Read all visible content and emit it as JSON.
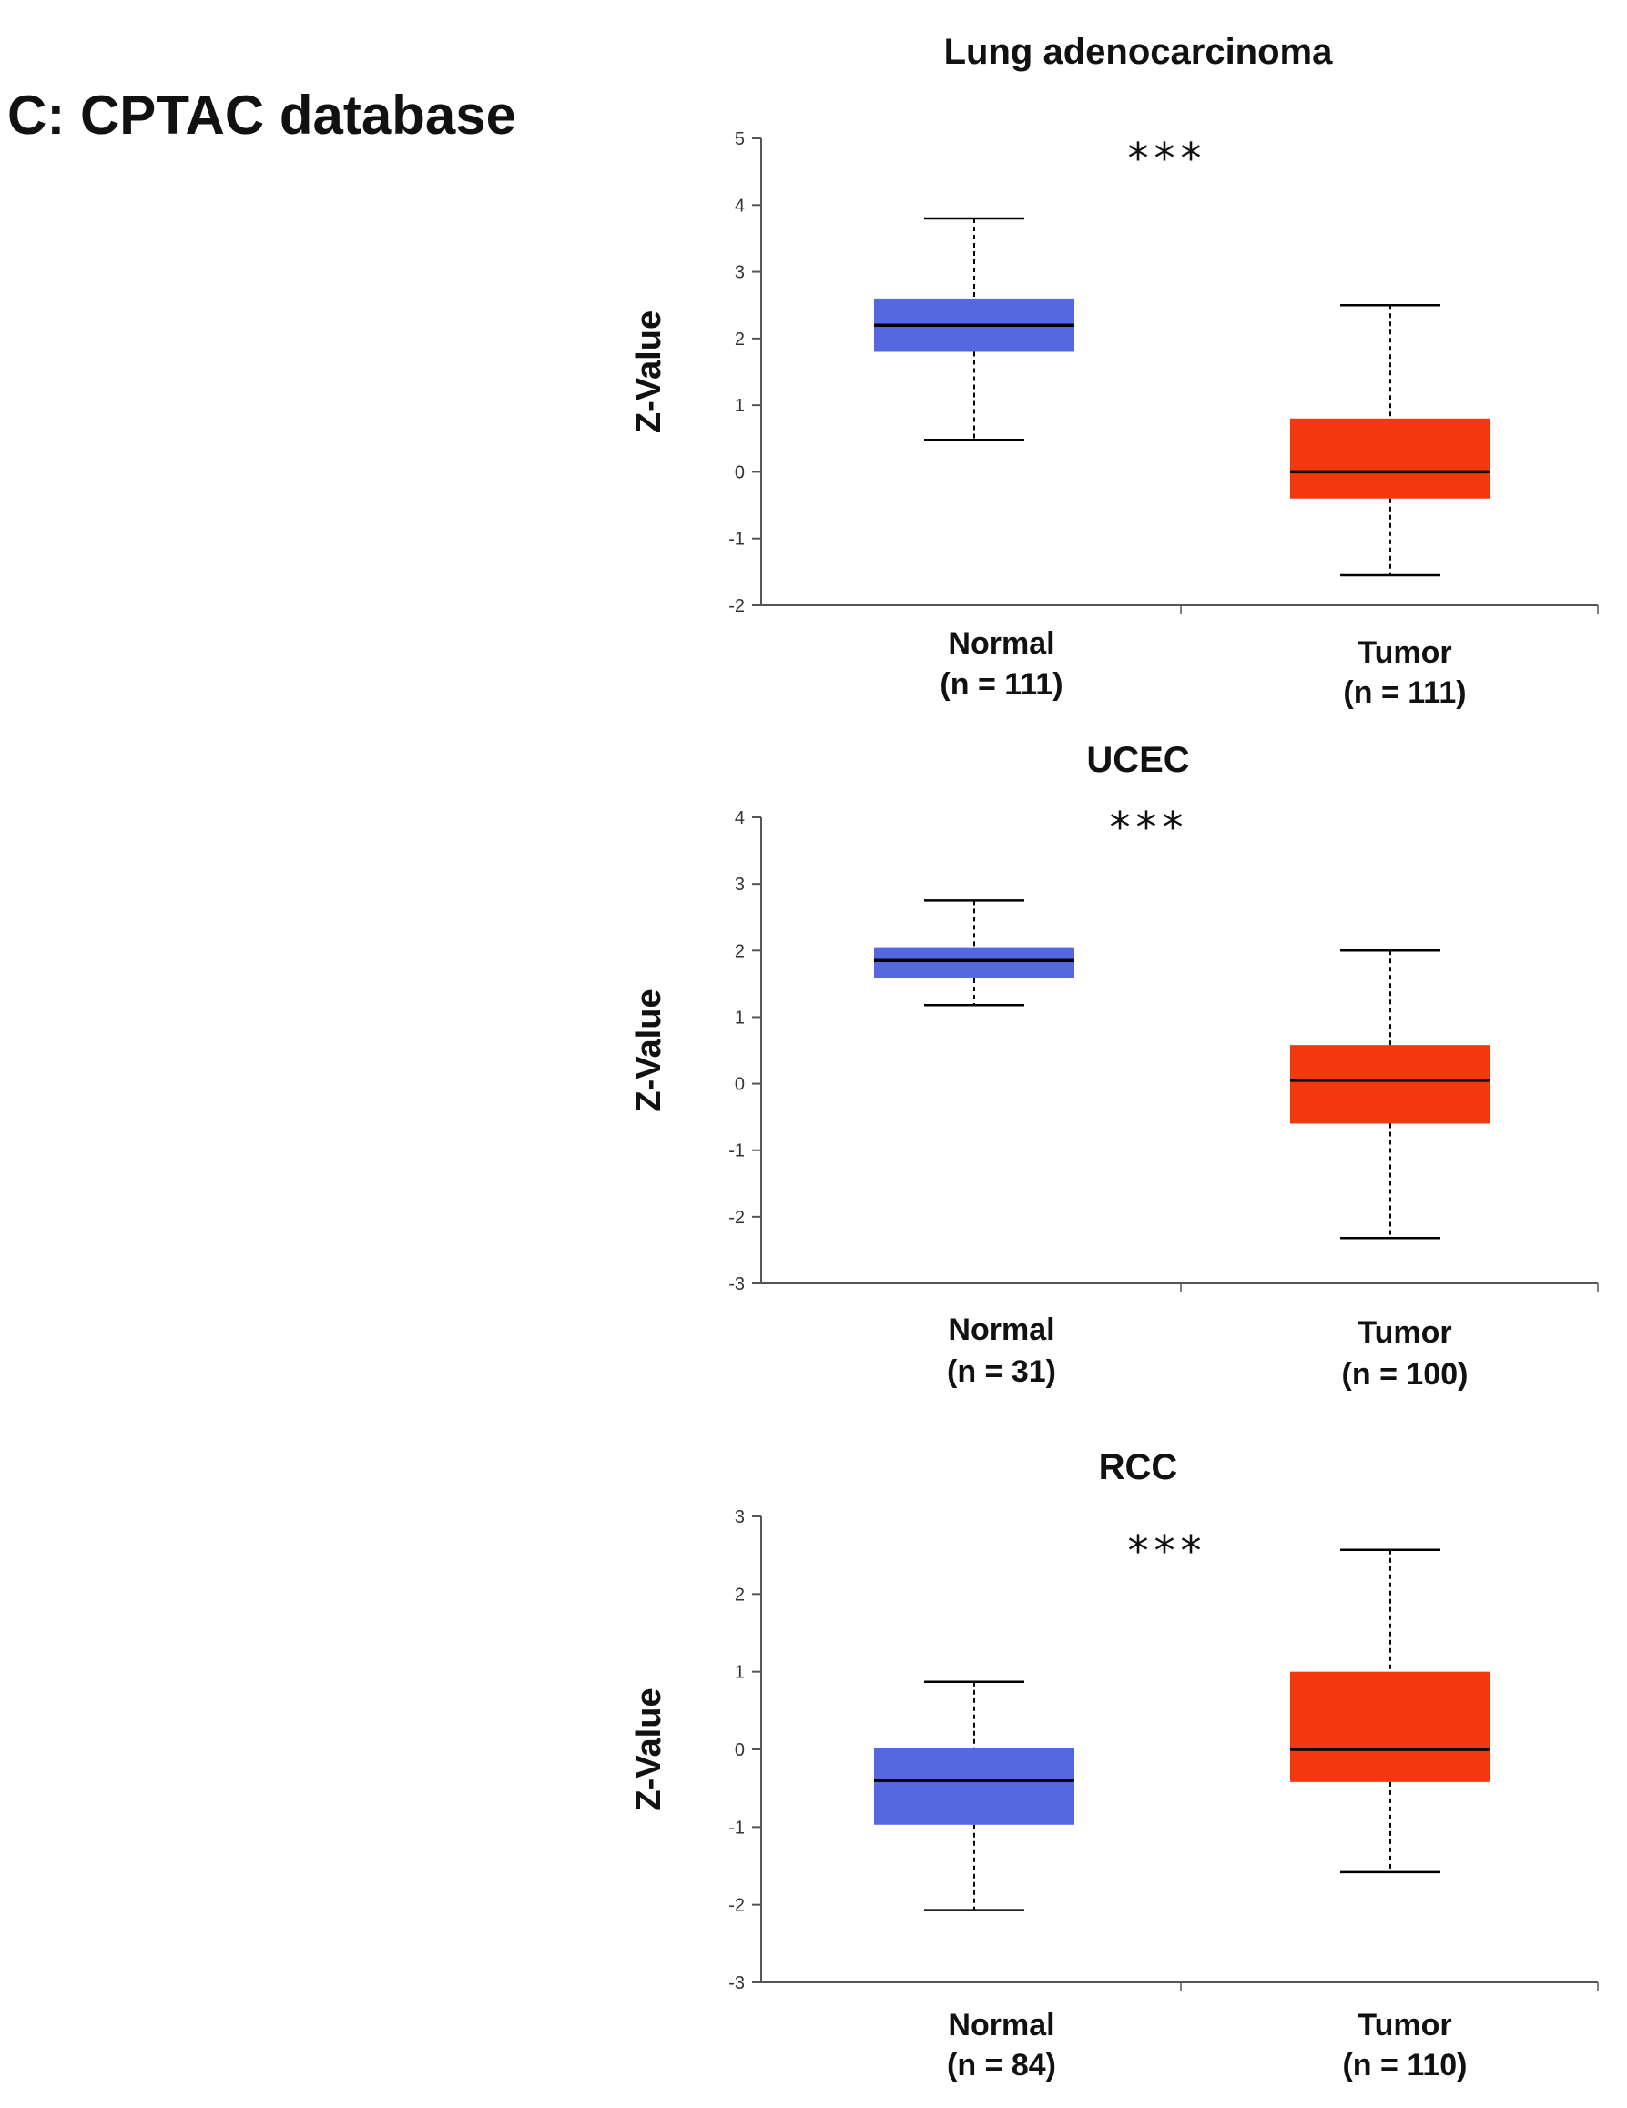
{
  "panel_label": "C: CPTAC database",
  "colors": {
    "normal": "#5468e0",
    "tumor": "#f4380e",
    "axis": "#555555",
    "median": "#000000"
  },
  "chart_data": [
    {
      "type": "box",
      "title": "Lung adenocarcinoma",
      "ylabel": "Z-Value",
      "ylim": [
        -2,
        5
      ],
      "yticks": [
        5,
        4,
        3,
        2,
        1,
        0,
        -1,
        -2
      ],
      "significance": "***",
      "groups": [
        {
          "name": "Normal",
          "n_label": "(n = 111)",
          "whisker_low": 0.48,
          "q1": 1.8,
          "median": 2.2,
          "q3": 2.6,
          "whisker_high": 3.8
        },
        {
          "name": "Tumor",
          "n_label": "(n = 111)",
          "whisker_low": -1.55,
          "q1": -0.4,
          "median": 0.0,
          "q3": 0.8,
          "whisker_high": 2.5
        }
      ]
    },
    {
      "type": "box",
      "title": "UCEC",
      "ylabel": "Z-Value",
      "ylim": [
        -3,
        4
      ],
      "yticks": [
        4,
        3,
        2,
        1,
        0,
        -1,
        -2,
        -3
      ],
      "significance": "***",
      "groups": [
        {
          "name": "Normal",
          "n_label": "(n = 31)",
          "whisker_low": 1.18,
          "q1": 1.58,
          "median": 1.85,
          "q3": 2.05,
          "whisker_high": 2.75
        },
        {
          "name": "Tumor",
          "n_label": "(n = 100)",
          "whisker_low": -2.32,
          "q1": -0.6,
          "median": 0.05,
          "q3": 0.58,
          "whisker_high": 2.0
        }
      ]
    },
    {
      "type": "box",
      "title": "RCC",
      "ylabel": "Z-Value",
      "ylim": [
        -3,
        3
      ],
      "yticks": [
        3,
        2,
        1,
        0,
        -1,
        -2,
        -3
      ],
      "significance": "***",
      "groups": [
        {
          "name": "Normal",
          "n_label": "(n = 84)",
          "whisker_low": -2.07,
          "q1": -0.97,
          "median": -0.4,
          "q3": 0.02,
          "whisker_high": 0.87
        },
        {
          "name": "Tumor",
          "n_label": "(n = 110)",
          "whisker_low": -1.58,
          "q1": -0.42,
          "median": 0.0,
          "q3": 1.0,
          "whisker_high": 2.57
        }
      ]
    }
  ]
}
